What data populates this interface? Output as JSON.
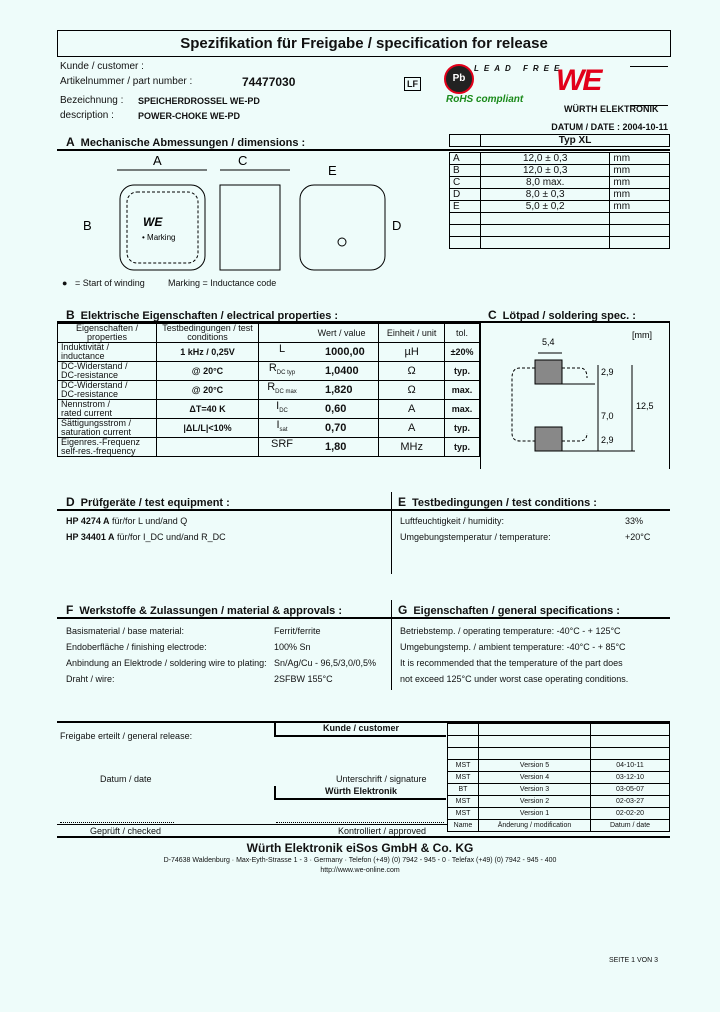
{
  "title": "Spezifikation für Freigabe / specification for release",
  "header": {
    "customer_label": "Kunde / customer :",
    "part_label": "Artikelnummer / part number :",
    "part_number": "74477030",
    "lf_badge": "LF",
    "name_label": "Bezeichnung :",
    "name_value": "SPEICHERDROSSEL WE-PD",
    "desc_label": "description :",
    "desc_value": "POWER-CHOKE WE-PD",
    "lead_free_logo": "LEAD FREE",
    "rohs": "RoHS compliant",
    "brand": "WÜRTH ELEKTRONIK",
    "date": "DATUM / DATE : 2004-10-11"
  },
  "colors": {
    "brand_red": "#e2001a",
    "rohs_green": "#1a8a1a",
    "background": "#eefcfa"
  },
  "sectionA": {
    "letter": "A",
    "title": "Mechanische Abmessungen / dimensions :",
    "type": "Typ XL",
    "drawing_labels": {
      "a": "A",
      "b": "B",
      "c": "C",
      "d": "D",
      "e": "E",
      "marking": "• Marking"
    },
    "legend": [
      "= Start of winding",
      "Marking = Inductance code"
    ],
    "rows": [
      {
        "k": "A",
        "v": "12,0 ± 0,3",
        "u": "mm"
      },
      {
        "k": "B",
        "v": "12,0 ± 0,3",
        "u": "mm"
      },
      {
        "k": "C",
        "v": "8,0 max.",
        "u": "mm"
      },
      {
        "k": "D",
        "v": "8,0 ± 0,3",
        "u": "mm"
      },
      {
        "k": "E",
        "v": "5,0 ± 0,2",
        "u": "mm"
      }
    ]
  },
  "sectionB": {
    "letter": "B",
    "title": "Elektrische Eigenschaften / electrical properties :",
    "headers": [
      "Eigenschaften / properties",
      "Testbedingungen / test conditions",
      "",
      "Wert / value",
      "Einheit / unit",
      "tol."
    ],
    "rows": [
      {
        "p1": "Induktivität /",
        "p2": "inductance",
        "cond": "1 kHz / 0,25V",
        "sym": "L",
        "sub": "",
        "val": "1000,00",
        "unit": "µH",
        "tol": "±20%"
      },
      {
        "p1": "DC-Widerstand /",
        "p2": "DC-resistance",
        "cond": "@ 20°C",
        "sym": "R",
        "sub": "DC typ",
        "val": "1,0400",
        "unit": "Ω",
        "tol": "typ."
      },
      {
        "p1": "DC-Widerstand /",
        "p2": "DC-resistance",
        "cond": "@ 20°C",
        "sym": "R",
        "sub": "DC max",
        "val": "1,820",
        "unit": "Ω",
        "tol": "max."
      },
      {
        "p1": "Nennstrom /",
        "p2": "rated current",
        "cond": "ΔT=40 K",
        "sym": "I",
        "sub": "DC",
        "val": "0,60",
        "unit": "A",
        "tol": "max."
      },
      {
        "p1": "Sättigungsstrom /",
        "p2": "saturation current",
        "cond": "|ΔL/L|<10%",
        "sym": "I",
        "sub": "sat",
        "val": "0,70",
        "unit": "A",
        "tol": "typ."
      },
      {
        "p1": "Eigenres.-Frequenz",
        "p2": "self-res.-frequency",
        "cond": "",
        "sym": "SRF",
        "sub": "",
        "val": "1,80",
        "unit": "MHz",
        "tol": "typ."
      }
    ]
  },
  "sectionC": {
    "letter": "C",
    "title": "Lötpad / soldering spec. :",
    "unit": "[mm]",
    "dims": [
      "5,4",
      "2,9",
      "7,0",
      "2,9",
      "12,5"
    ]
  },
  "sectionD": {
    "letter": "D",
    "title": "Prüfgeräte / test equipment :",
    "items": [
      {
        "b": "HP 4274 A",
        "t": " für/for L und/and Q"
      },
      {
        "b": "HP 34401 A",
        "t": " für/for I_DC und/and R_DC"
      }
    ]
  },
  "sectionE": {
    "letter": "E",
    "title": "Testbedingungen / test conditions :",
    "items": [
      {
        "k": "Luftfeuchtigkeit / humidity:",
        "v": "33%"
      },
      {
        "k": "Umgebungstemperatur / temperature:",
        "v": "+20°C"
      }
    ]
  },
  "sectionF": {
    "letter": "F",
    "title": "Werkstoffe & Zulassungen / material & approvals :",
    "items": [
      {
        "k": "Basismaterial / base material:",
        "v": "Ferrit/ferrite"
      },
      {
        "k": "Endoberfläche / finishing electrode:",
        "v": "100% Sn"
      },
      {
        "k": "Anbindung an Elektrode / soldering wire to plating:",
        "v": "Sn/Ag/Cu - 96,5/3,0/0,5%"
      },
      {
        "k": "Draht / wire:",
        "v": "2SFBW 155°C"
      }
    ]
  },
  "sectionG": {
    "letter": "G",
    "title": "Eigenschaften / general specifications :",
    "items": [
      "Betriebstemp. / operating temperature:   -40°C - +  125°C",
      "Umgebungstemp. / ambient temperature:  -40°C - +  85°C",
      "It is recommended that the temperature of the part does",
      "not exceed 125°C under worst case operating conditions."
    ]
  },
  "release": {
    "label": "Freigabe erteilt / general release:",
    "customer": "Kunde / customer",
    "date": "Datum / date",
    "signature": "Unterschrift / signature",
    "we": "Würth Elektronik",
    "checked": "Geprüft / checked",
    "approved": "Kontrolliert / approved",
    "versions": [
      {
        "n": "MST",
        "m": "Version 5",
        "d": "04-10-11"
      },
      {
        "n": "MST",
        "m": "Version 4",
        "d": "03-12-10"
      },
      {
        "n": "BT",
        "m": "Version 3",
        "d": "03-05-07"
      },
      {
        "n": "MST",
        "m": "Version 2",
        "d": "02-03-27"
      },
      {
        "n": "MST",
        "m": "Version 1",
        "d": "02-02-20"
      }
    ],
    "vh": {
      "n": "Name",
      "m": "Änderung / modification",
      "d": "Datum / date"
    }
  },
  "footer": {
    "company": "Würth Elektronik eiSos GmbH & Co. KG",
    "address": "D-74638 Waldenburg · Max-Eyth-Strasse 1 - 3 · Germany · Telefon (+49) (0) 7942 - 945 - 0 · Telefax (+49) (0) 7942 - 945 - 400",
    "url": "http://www.we-online.com",
    "page": "SEITE 1 VON 3"
  }
}
